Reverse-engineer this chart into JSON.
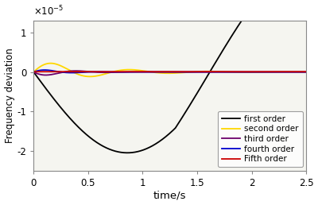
{
  "xlim": [
    0,
    2.5
  ],
  "ylim": [
    -2.5e-05,
    1.3e-05
  ],
  "yticks": [
    -2e-05,
    -1e-05,
    0,
    1e-05
  ],
  "ytick_labels": [
    "-2",
    "-1",
    "0",
    "1"
  ],
  "xticks": [
    0,
    0.5,
    1,
    1.5,
    2,
    2.5
  ],
  "xtick_labels": [
    "0",
    "0.5",
    "1",
    "1.5",
    "2",
    "2.5"
  ],
  "xlabel": "time/s",
  "ylabel": "Frequency deviation",
  "legend_entries": [
    "first order",
    "second order",
    "third order",
    "fourth order",
    "Fifth order"
  ],
  "colors": [
    "#000000",
    "#FFD700",
    "#6B006B",
    "#0000CD",
    "#CC0000"
  ],
  "figsize": [
    4.0,
    2.58
  ],
  "dpi": 100,
  "bg_color": "#f5f5f0"
}
